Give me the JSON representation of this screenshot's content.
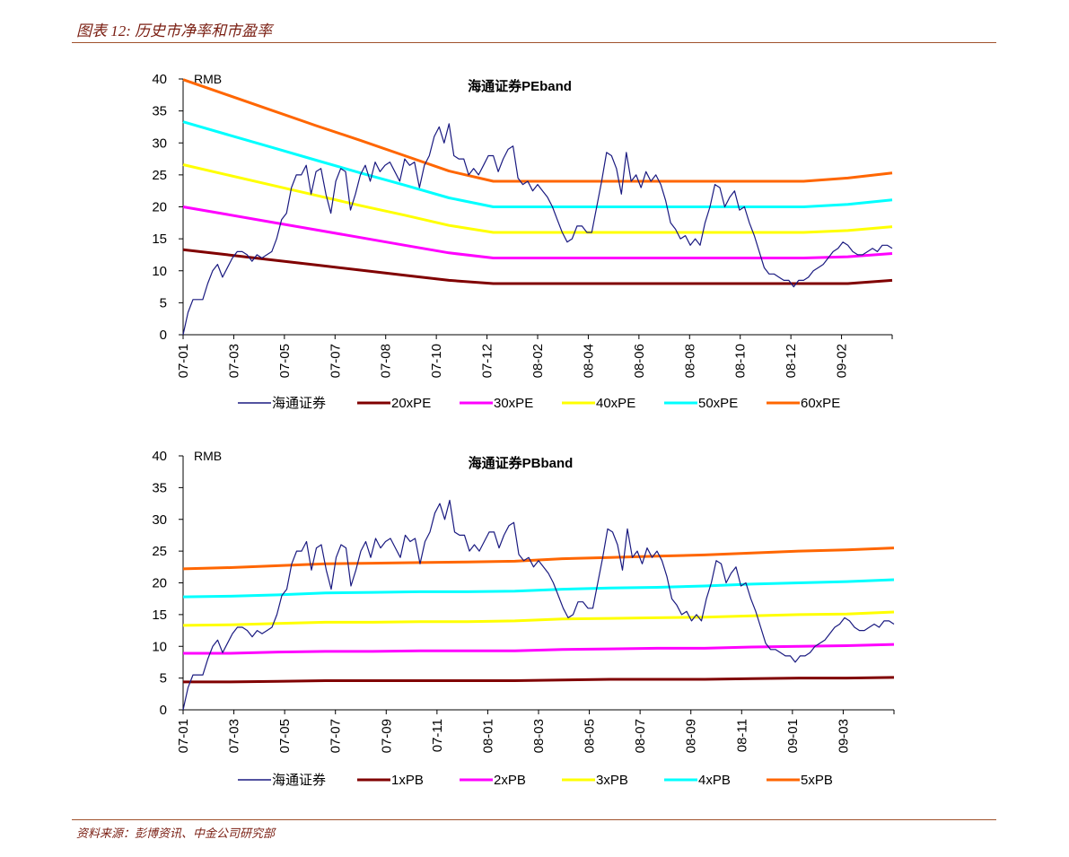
{
  "figure_title": "图表 12:  历史市净率和市盈率",
  "source": "资料来源：彭博资讯、中金公司研究部",
  "chart_data": [
    {
      "type": "line",
      "title": "海通证券PEband",
      "ylabel": "RMB",
      "ylim": [
        0,
        40
      ],
      "yticks": [
        "0",
        "5",
        "10",
        "15",
        "20",
        "25",
        "30",
        "35",
        "40"
      ],
      "xticks": [
        "07-01",
        "07-03",
        "07-05",
        "07-07",
        "07-08",
        "07-10",
        "07-12",
        "08-02",
        "08-04",
        "08-06",
        "08-08",
        "08-10",
        "08-12",
        "09-02"
      ],
      "series": [
        {
          "name": "海通证券",
          "color": "#1a1a80",
          "values": [
            0,
            3.5,
            5.5,
            5.5,
            5.5,
            8,
            10,
            11,
            9,
            10.5,
            12,
            13,
            13,
            12.5,
            11.5,
            12.5,
            12,
            12.5,
            13,
            15,
            18,
            19,
            23,
            25,
            25,
            26.5,
            22,
            25.5,
            26,
            22,
            19,
            24,
            26,
            25.5,
            19.5,
            22,
            25,
            26.5,
            24,
            27,
            25.5,
            26.5,
            27,
            25.5,
            24,
            27.5,
            26.5,
            27,
            23,
            26.5,
            28,
            31,
            32.5,
            30,
            33,
            28,
            27.5,
            27.5,
            25,
            26,
            25,
            26.5,
            28,
            28,
            25.5,
            27.5,
            29,
            29.5,
            24.5,
            23.5,
            24,
            22.5,
            23.5,
            22.5,
            21.5,
            20,
            18,
            16,
            14.5,
            15,
            17,
            17,
            16,
            16,
            20,
            24,
            28.5,
            28,
            26,
            22,
            28.5,
            24,
            25,
            23,
            25.5,
            24,
            25,
            23.5,
            21,
            17.5,
            16.5,
            15,
            15.5,
            14,
            15,
            14,
            17.5,
            20,
            23.5,
            23,
            20,
            21.5,
            22.5,
            19.5,
            20,
            17.5,
            15.5,
            13,
            10.5,
            9.5,
            9.5,
            9,
            8.5,
            8.5,
            7.5,
            8.5,
            8.5,
            9,
            10,
            10.5,
            11,
            12,
            13,
            13.5,
            14.5,
            14,
            13,
            12.5,
            12.5,
            13,
            13.5,
            13,
            14,
            14,
            13.5
          ]
        },
        {
          "name": "20xPE",
          "color": "#800000",
          "values": [
            13.3,
            12.5,
            11.7,
            10.9,
            10.1,
            9.3,
            8.5,
            8.0,
            8.0,
            8.0,
            8.0,
            8.0,
            8.0,
            8.0,
            8.0,
            8.0,
            8.5
          ]
        },
        {
          "name": "30xPE",
          "color": "#ff00ff",
          "values": [
            20,
            18.8,
            17.6,
            16.4,
            15.2,
            14.0,
            12.8,
            12.0,
            12.0,
            12.0,
            12.0,
            12.0,
            12.0,
            12.0,
            12.0,
            12.2,
            12.7
          ]
        },
        {
          "name": "40xPE",
          "color": "#ffff00",
          "values": [
            26.6,
            25.0,
            23.4,
            21.8,
            20.2,
            18.7,
            17.1,
            16.0,
            16.0,
            16.0,
            16.0,
            16.0,
            16.0,
            16.0,
            16.0,
            16.3,
            16.9
          ]
        },
        {
          "name": "50xPE",
          "color": "#00ffff",
          "values": [
            33.3,
            31.3,
            29.3,
            27.3,
            25.3,
            23.4,
            21.4,
            20.0,
            20.0,
            20.0,
            20.0,
            20.0,
            20.0,
            20.0,
            20.0,
            20.4,
            21.1
          ]
        },
        {
          "name": "60xPE",
          "color": "#ff6600",
          "values": [
            39.9,
            37.5,
            35.1,
            32.7,
            30.4,
            28.0,
            25.6,
            24.0,
            24.0,
            24.0,
            24.0,
            24.0,
            24.0,
            24.0,
            24.0,
            24.5,
            25.3
          ]
        }
      ]
    },
    {
      "type": "line",
      "title": "海通证券PBband",
      "ylabel": "RMB",
      "ylim": [
        0,
        40
      ],
      "yticks": [
        "0",
        "5",
        "10",
        "15",
        "20",
        "25",
        "30",
        "35",
        "40"
      ],
      "xticks": [
        "07-01",
        "07-03",
        "07-05",
        "07-07",
        "07-09",
        "07-11",
        "08-01",
        "08-03",
        "08-05",
        "08-07",
        "08-09",
        "08-11",
        "09-01",
        "09-03"
      ],
      "series": [
        {
          "name": "海通证券",
          "color": "#1a1a80",
          "values": [
            0,
            3.5,
            5.5,
            5.5,
            5.5,
            8,
            10,
            11,
            9,
            10.5,
            12,
            13,
            13,
            12.5,
            11.5,
            12.5,
            12,
            12.5,
            13,
            15,
            18,
            19,
            23,
            25,
            25,
            26.5,
            22,
            25.5,
            26,
            22,
            19,
            24,
            26,
            25.5,
            19.5,
            22,
            25,
            26.5,
            24,
            27,
            25.5,
            26.5,
            27,
            25.5,
            24,
            27.5,
            26.5,
            27,
            23,
            26.5,
            28,
            31,
            32.5,
            30,
            33,
            28,
            27.5,
            27.5,
            25,
            26,
            25,
            26.5,
            28,
            28,
            25.5,
            27.5,
            29,
            29.5,
            24.5,
            23.5,
            24,
            22.5,
            23.5,
            22.5,
            21.5,
            20,
            18,
            16,
            14.5,
            15,
            17,
            17,
            16,
            16,
            20,
            24,
            28.5,
            28,
            26,
            22,
            28.5,
            24,
            25,
            23,
            25.5,
            24,
            25,
            23.5,
            21,
            17.5,
            16.5,
            15,
            15.5,
            14,
            15,
            14,
            17.5,
            20,
            23.5,
            23,
            20,
            21.5,
            22.5,
            19.5,
            20,
            17.5,
            15.5,
            13,
            10.5,
            9.5,
            9.5,
            9,
            8.5,
            8.5,
            7.5,
            8.5,
            8.5,
            9,
            10,
            10.5,
            11,
            12,
            13,
            13.5,
            14.5,
            14,
            13,
            12.5,
            12.5,
            13,
            13.5,
            13,
            14,
            14,
            13.5
          ]
        },
        {
          "name": "1xPB",
          "color": "#800000",
          "values": [
            4.4,
            4.4,
            4.5,
            4.6,
            4.6,
            4.6,
            4.6,
            4.6,
            4.7,
            4.8,
            4.8,
            4.8,
            4.9,
            5.0,
            5.0,
            5.1
          ]
        },
        {
          "name": "2xPB",
          "color": "#ff00ff",
          "values": [
            8.9,
            8.9,
            9.1,
            9.2,
            9.2,
            9.3,
            9.3,
            9.3,
            9.5,
            9.6,
            9.7,
            9.7,
            9.9,
            10.0,
            10.1,
            10.3
          ]
        },
        {
          "name": "3xPB",
          "color": "#ffff00",
          "values": [
            13.3,
            13.4,
            13.6,
            13.8,
            13.8,
            13.9,
            13.9,
            14.0,
            14.3,
            14.4,
            14.5,
            14.6,
            14.8,
            15.0,
            15.1,
            15.4
          ]
        },
        {
          "name": "4xPB",
          "color": "#00ffff",
          "values": [
            17.8,
            17.9,
            18.1,
            18.4,
            18.5,
            18.6,
            18.6,
            18.7,
            19.0,
            19.2,
            19.3,
            19.5,
            19.8,
            20.0,
            20.2,
            20.5
          ]
        },
        {
          "name": "5xPB",
          "color": "#ff6600",
          "values": [
            22.2,
            22.4,
            22.7,
            23.0,
            23.1,
            23.2,
            23.3,
            23.4,
            23.8,
            24.0,
            24.2,
            24.4,
            24.7,
            25.0,
            25.2,
            25.5
          ]
        }
      ]
    }
  ]
}
